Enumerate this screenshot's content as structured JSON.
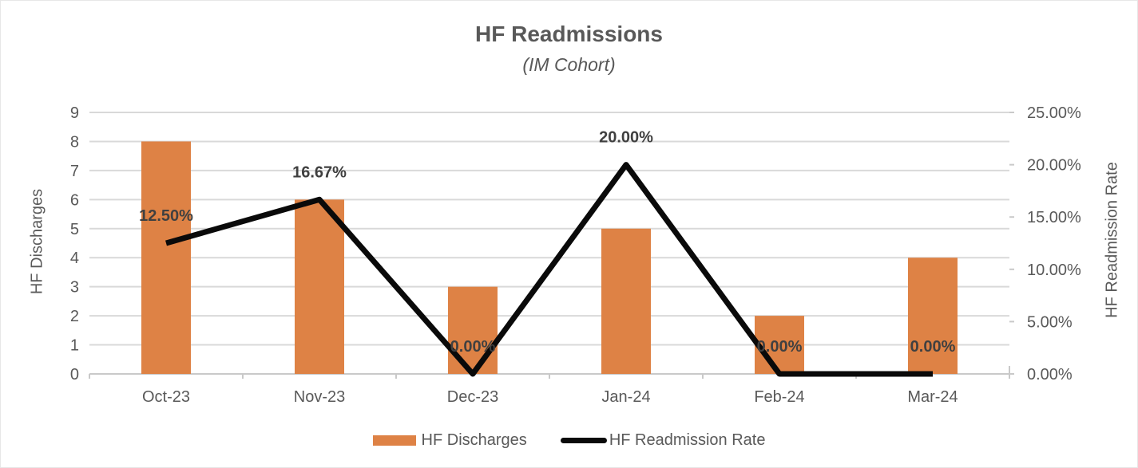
{
  "header": {
    "title": "HF Readmissions",
    "subtitle": "(IM Cohort)"
  },
  "chart_data": {
    "type": "combo",
    "title": "HF Readmissions",
    "subtitle": "(IM Cohort)",
    "categories": [
      "Oct-23",
      "Nov-23",
      "Dec-23",
      "Jan-24",
      "Feb-24",
      "Mar-24"
    ],
    "series": [
      {
        "name": "HF Discharges",
        "type": "bar",
        "axis": "left",
        "color": "#DE8245",
        "values": [
          8,
          6,
          3,
          5,
          2,
          4
        ]
      },
      {
        "name": "HF Readmission Rate",
        "type": "line",
        "axis": "right",
        "color": "#0A0A0A",
        "values": [
          12.5,
          16.67,
          0,
          20,
          0,
          0
        ],
        "data_labels": [
          "12.50%",
          "16.67%",
          "0.00%",
          "20.00%",
          "0.00%",
          "0.00%"
        ]
      }
    ],
    "left_axis": {
      "title": "HF Discharges",
      "min": 0,
      "max": 9,
      "step": 1,
      "tick_labels": [
        "0",
        "1",
        "2",
        "3",
        "4",
        "5",
        "6",
        "7",
        "8",
        "9"
      ]
    },
    "right_axis": {
      "title": "HF Readmission Rate",
      "min": 0,
      "max": 25,
      "step": 5,
      "tick_labels": [
        "0.00%",
        "5.00%",
        "10.00%",
        "15.00%",
        "20.00%",
        "25.00%"
      ]
    },
    "legend": {
      "position": "bottom",
      "items": [
        "HF Discharges",
        "HF Readmission Rate"
      ]
    },
    "grid": true,
    "colors": {
      "bar": "#DE8245",
      "line": "#0A0A0A",
      "grid": "#D9D9D9",
      "axis_line": "#C9C9C9",
      "text": "#595959",
      "data_label": "#404040",
      "background": "#FFFFFF"
    }
  }
}
